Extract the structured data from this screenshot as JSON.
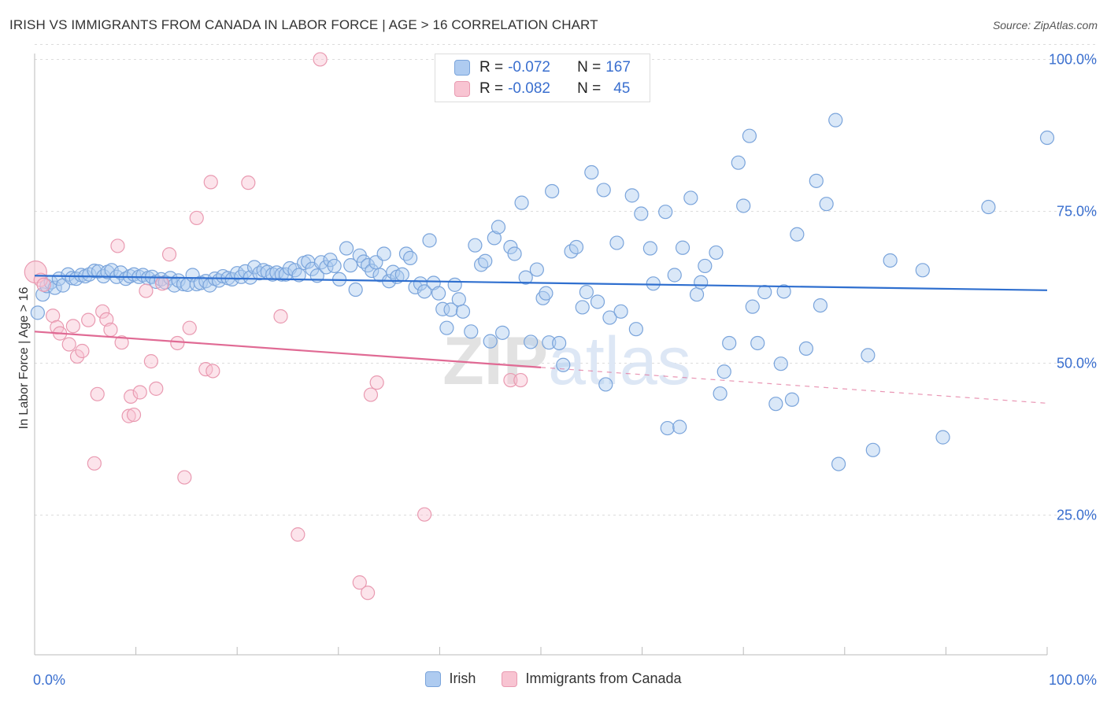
{
  "header": {
    "title": "IRISH VS IMMIGRANTS FROM CANADA IN LABOR FORCE | AGE > 16 CORRELATION CHART",
    "source": "Source: ZipAtlas.com"
  },
  "stats_legend": {
    "rows": [
      {
        "r_label": "R =",
        "r_value": "-0.072",
        "n_label": "N =",
        "n_value": "167",
        "color": "#aecbf0"
      },
      {
        "r_label": "R =",
        "r_value": "-0.082",
        "n_label": "N =",
        "n_value": "45",
        "color": "#f8c4d2"
      }
    ]
  },
  "legend": {
    "items": [
      {
        "label": "Irish",
        "color": "#aecbf0"
      },
      {
        "label": "Immigrants from Canada",
        "color": "#f8c4d2"
      }
    ]
  },
  "chart_data": {
    "type": "scatter",
    "title": "IRISH VS IMMIGRANTS FROM CANADA IN LABOR FORCE | AGE > 16 CORRELATION CHART",
    "ylabel": "In Labor Force | Age > 16",
    "xlabel": "",
    "xlim": [
      0,
      100
    ],
    "ylim": [
      2,
      102
    ],
    "x_tick_labels": [
      "0.0%",
      "100.0%"
    ],
    "y_tick_labels": [
      {
        "value": 100,
        "label": "100.0%"
      },
      {
        "value": 75,
        "label": "75.0%"
      },
      {
        "value": 50,
        "label": "50.0%"
      },
      {
        "value": 25,
        "label": "25.0%"
      }
    ],
    "grid": true,
    "watermark": "ZIPatlas",
    "series": [
      {
        "name": "Irish",
        "color": "#7aa4db",
        "fill": "#aecbf0",
        "trend": {
          "x0": 0,
          "y0": 64.4,
          "x1": 100,
          "y1": 62.0,
          "solid_until": 100
        },
        "points": [
          [
            0.3,
            58.3
          ],
          [
            0.8,
            61.3
          ],
          [
            1.2,
            62.7
          ],
          [
            1.6,
            63.3
          ],
          [
            2.0,
            62.4
          ],
          [
            2.4,
            63.9
          ],
          [
            2.8,
            62.8
          ],
          [
            3.3,
            64.6
          ],
          [
            3.7,
            64.0
          ],
          [
            4.1,
            63.9
          ],
          [
            4.6,
            64.5
          ],
          [
            5.0,
            64.3
          ],
          [
            5.4,
            64.6
          ],
          [
            5.9,
            65.2
          ],
          [
            6.3,
            65.1
          ],
          [
            6.8,
            64.3
          ],
          [
            7.2,
            65.0
          ],
          [
            7.6,
            65.3
          ],
          [
            8.1,
            64.2
          ],
          [
            8.5,
            64.9
          ],
          [
            9.0,
            63.9
          ],
          [
            9.4,
            64.3
          ],
          [
            9.8,
            64.6
          ],
          [
            10.3,
            64.2
          ],
          [
            10.7,
            64.5
          ],
          [
            11.2,
            64.0
          ],
          [
            11.6,
            64.2
          ],
          [
            12.0,
            63.4
          ],
          [
            12.5,
            63.8
          ],
          [
            12.9,
            63.3
          ],
          [
            13.4,
            64.0
          ],
          [
            13.8,
            62.8
          ],
          [
            14.2,
            63.6
          ],
          [
            14.7,
            63.0
          ],
          [
            15.1,
            62.9
          ],
          [
            15.6,
            64.5
          ],
          [
            16.0,
            63.0
          ],
          [
            16.4,
            63.2
          ],
          [
            16.9,
            63.5
          ],
          [
            17.3,
            62.8
          ],
          [
            17.8,
            63.9
          ],
          [
            18.2,
            63.6
          ],
          [
            18.6,
            64.3
          ],
          [
            19.1,
            64.0
          ],
          [
            19.5,
            63.8
          ],
          [
            20.0,
            64.8
          ],
          [
            20.4,
            64.2
          ],
          [
            20.8,
            65.1
          ],
          [
            21.3,
            64.1
          ],
          [
            21.7,
            65.8
          ],
          [
            22.2,
            64.8
          ],
          [
            22.6,
            65.3
          ],
          [
            23.0,
            65.0
          ],
          [
            23.5,
            64.6
          ],
          [
            23.9,
            64.9
          ],
          [
            24.4,
            64.6
          ],
          [
            24.8,
            64.6
          ],
          [
            25.2,
            65.6
          ],
          [
            25.7,
            65.3
          ],
          [
            26.1,
            64.5
          ],
          [
            26.6,
            66.5
          ],
          [
            27.0,
            66.7
          ],
          [
            27.4,
            65.5
          ],
          [
            27.9,
            64.4
          ],
          [
            28.3,
            66.6
          ],
          [
            28.8,
            65.8
          ],
          [
            29.2,
            67.0
          ],
          [
            29.6,
            66.0
          ],
          [
            30.1,
            63.8
          ],
          [
            30.8,
            68.9
          ],
          [
            31.2,
            66.1
          ],
          [
            31.7,
            62.1
          ],
          [
            32.1,
            67.7
          ],
          [
            32.5,
            66.7
          ],
          [
            32.9,
            66.1
          ],
          [
            33.3,
            65.2
          ],
          [
            33.7,
            66.6
          ],
          [
            34.1,
            64.5
          ],
          [
            34.5,
            68.0
          ],
          [
            35.0,
            63.5
          ],
          [
            35.4,
            65.0
          ],
          [
            35.8,
            64.2
          ],
          [
            36.3,
            64.6
          ],
          [
            36.7,
            68.0
          ],
          [
            37.1,
            67.3
          ],
          [
            37.6,
            62.5
          ],
          [
            38.1,
            63.1
          ],
          [
            38.5,
            61.8
          ],
          [
            39.0,
            70.2
          ],
          [
            39.4,
            63.2
          ],
          [
            39.9,
            61.5
          ],
          [
            40.3,
            58.9
          ],
          [
            40.7,
            55.8
          ],
          [
            41.1,
            58.8
          ],
          [
            41.5,
            62.9
          ],
          [
            41.9,
            60.5
          ],
          [
            42.3,
            58.5
          ],
          [
            43.1,
            55.2
          ],
          [
            43.5,
            69.4
          ],
          [
            44.1,
            66.2
          ],
          [
            44.5,
            66.8
          ],
          [
            45.0,
            53.6
          ],
          [
            45.4,
            70.6
          ],
          [
            45.8,
            72.4
          ],
          [
            46.2,
            55.0
          ],
          [
            47.0,
            69.1
          ],
          [
            47.4,
            68.0
          ],
          [
            48.1,
            76.4
          ],
          [
            48.5,
            64.1
          ],
          [
            49.0,
            53.5
          ],
          [
            49.6,
            65.4
          ],
          [
            50.2,
            60.7
          ],
          [
            50.5,
            61.5
          ],
          [
            50.8,
            53.4
          ],
          [
            51.1,
            78.3
          ],
          [
            51.8,
            53.3
          ],
          [
            52.2,
            49.7
          ],
          [
            53.0,
            68.4
          ],
          [
            53.5,
            69.1
          ],
          [
            54.1,
            59.2
          ],
          [
            54.5,
            61.7
          ],
          [
            55.0,
            81.4
          ],
          [
            55.6,
            60.1
          ],
          [
            56.2,
            78.5
          ],
          [
            56.4,
            46.5
          ],
          [
            56.8,
            57.5
          ],
          [
            57.5,
            69.8
          ],
          [
            57.9,
            58.5
          ],
          [
            59.0,
            77.6
          ],
          [
            59.4,
            55.6
          ],
          [
            59.9,
            74.6
          ],
          [
            60.8,
            68.9
          ],
          [
            61.1,
            63.1
          ],
          [
            62.3,
            74.9
          ],
          [
            62.5,
            39.3
          ],
          [
            63.2,
            64.5
          ],
          [
            63.7,
            39.5
          ],
          [
            64.0,
            69.0
          ],
          [
            64.8,
            77.2
          ],
          [
            65.4,
            61.3
          ],
          [
            65.8,
            63.3
          ],
          [
            66.2,
            66.0
          ],
          [
            67.3,
            68.2
          ],
          [
            67.7,
            45.0
          ],
          [
            68.1,
            48.6
          ],
          [
            68.6,
            53.3
          ],
          [
            69.5,
            83.0
          ],
          [
            70.0,
            75.9
          ],
          [
            70.6,
            87.4
          ],
          [
            70.9,
            59.3
          ],
          [
            71.4,
            53.3
          ],
          [
            72.1,
            61.7
          ],
          [
            73.2,
            43.3
          ],
          [
            73.7,
            49.9
          ],
          [
            74.0,
            61.8
          ],
          [
            74.8,
            44.0
          ],
          [
            75.3,
            71.2
          ],
          [
            76.2,
            52.4
          ],
          [
            77.2,
            80.0
          ],
          [
            77.6,
            59.5
          ],
          [
            78.2,
            76.2
          ],
          [
            79.1,
            90.0
          ],
          [
            79.4,
            33.4
          ],
          [
            82.3,
            51.3
          ],
          [
            82.8,
            35.7
          ],
          [
            84.5,
            66.9
          ],
          [
            87.7,
            65.3
          ],
          [
            89.7,
            37.8
          ],
          [
            94.2,
            75.7
          ],
          [
            100.0,
            87.1
          ]
        ]
      },
      {
        "name": "Immigrants from Canada",
        "color": "#e99ab1",
        "fill": "#f8c4d2",
        "trend": {
          "x0": 0,
          "y0": 55.2,
          "x1": 100,
          "y1": 43.4,
          "solid_until": 50
        },
        "points": [
          [
            0.1,
            65.0
          ],
          [
            0.6,
            63.7
          ],
          [
            0.9,
            62.9
          ],
          [
            1.8,
            57.8
          ],
          [
            2.2,
            55.9
          ],
          [
            2.5,
            54.9
          ],
          [
            3.4,
            53.1
          ],
          [
            3.8,
            56.1
          ],
          [
            4.2,
            51.1
          ],
          [
            4.7,
            52.0
          ],
          [
            5.3,
            57.1
          ],
          [
            5.9,
            33.5
          ],
          [
            6.2,
            44.9
          ],
          [
            6.7,
            58.5
          ],
          [
            7.1,
            57.2
          ],
          [
            7.5,
            55.5
          ],
          [
            8.2,
            69.3
          ],
          [
            8.6,
            53.4
          ],
          [
            9.3,
            41.3
          ],
          [
            9.5,
            44.5
          ],
          [
            9.8,
            41.5
          ],
          [
            10.4,
            45.2
          ],
          [
            11.0,
            61.9
          ],
          [
            11.5,
            50.3
          ],
          [
            12.0,
            45.8
          ],
          [
            12.6,
            63.1
          ],
          [
            13.3,
            67.9
          ],
          [
            14.1,
            53.3
          ],
          [
            14.8,
            31.2
          ],
          [
            15.3,
            55.8
          ],
          [
            16.0,
            73.9
          ],
          [
            16.9,
            49.0
          ],
          [
            17.4,
            79.8
          ],
          [
            17.6,
            48.7
          ],
          [
            21.1,
            79.7
          ],
          [
            24.3,
            57.7
          ],
          [
            26.0,
            21.8
          ],
          [
            28.2,
            100.0
          ],
          [
            32.1,
            13.9
          ],
          [
            32.9,
            12.2
          ],
          [
            33.2,
            44.8
          ],
          [
            33.8,
            46.8
          ],
          [
            38.5,
            25.1
          ],
          [
            47.0,
            47.2
          ],
          [
            48.0,
            47.2
          ]
        ]
      }
    ]
  }
}
